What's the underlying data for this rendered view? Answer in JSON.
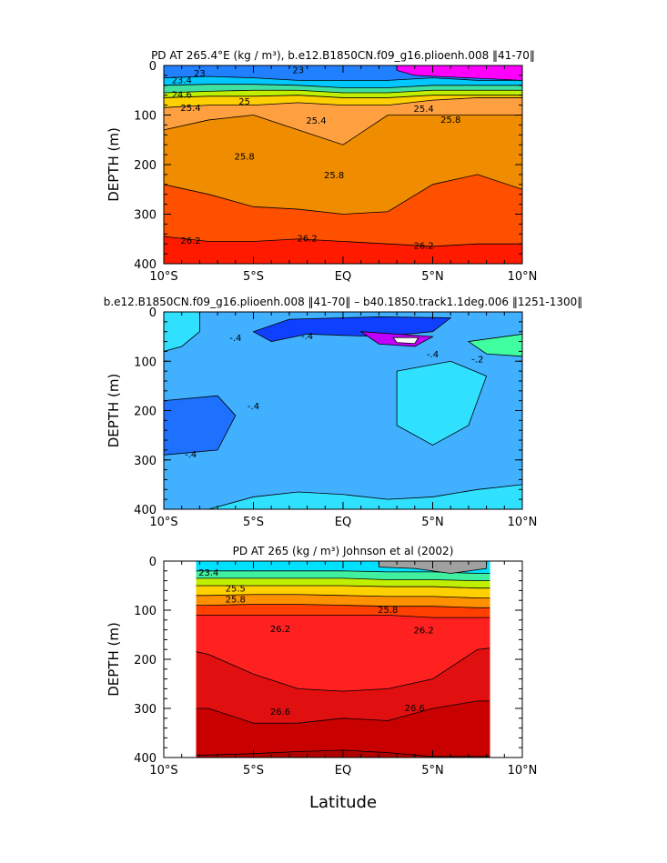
{
  "figure_xlabel": "Latitude",
  "chart_data": [
    {
      "type": "contour",
      "title": "PD AT 265.4°E (kg / m³), b.e12.B1850CN.f09_g16.plioenh.008 ‖41-70‖",
      "ylabel": "DEPTH (m)",
      "xlim": [
        -10,
        10
      ],
      "xticks": [
        {
          "value": -10,
          "label": "10°S"
        },
        {
          "value": -5,
          "label": "5°S"
        },
        {
          "value": 0,
          "label": "EQ"
        },
        {
          "value": 5,
          "label": "5°N"
        },
        {
          "value": 10,
          "label": "10°N"
        }
      ],
      "ylim": [
        400,
        0
      ],
      "yticks": [
        0,
        100,
        200,
        300,
        400
      ],
      "colors": [
        "#2080ff",
        "#00c8ff",
        "#40e0a0",
        "#c0f000",
        "#ffd000",
        "#ffa040",
        "#f08c00",
        "#ff5000",
        "#ff1a00",
        "#ff00ff"
      ],
      "contour_labels": [
        "23",
        "23",
        "23.4",
        "24.6",
        "25",
        "25.4",
        "25.4",
        "25.4",
        "25.8",
        "25.8",
        "25.8",
        "26.2",
        "26.2",
        "26.2"
      ]
    },
    {
      "type": "contour",
      "title": "b.e12.B1850CN.f09_g16.plioenh.008 ‖41-70‖ – b40.1850.track1.1deg.006 ‖1251-1300‖",
      "ylabel": "DEPTH (m)",
      "xlim": [
        -10,
        10
      ],
      "xticks": [
        {
          "value": -10,
          "label": "10°S"
        },
        {
          "value": -5,
          "label": "5°S"
        },
        {
          "value": 0,
          "label": "EQ"
        },
        {
          "value": 5,
          "label": "5°N"
        },
        {
          "value": 10,
          "label": "10°N"
        }
      ],
      "ylim": [
        400,
        0
      ],
      "yticks": [
        0,
        100,
        200,
        300,
        400
      ],
      "colors": [
        "#40b0ff",
        "#30e0ff",
        "#1e70ff",
        "#1040ff",
        "#c000ff",
        "#ffffff",
        "#40ffa0"
      ],
      "contour_labels": [
        "-.4",
        "-.4",
        "-.4",
        "-.4",
        "-.4",
        "-.2"
      ]
    },
    {
      "type": "contour",
      "title": "PD AT 265 (kg / m³) Johnson et al (2002)",
      "ylabel": "DEPTH (m)",
      "xlim": [
        -10,
        10
      ],
      "xticks": [
        {
          "value": -10,
          "label": "10°S"
        },
        {
          "value": -5,
          "label": "5°S"
        },
        {
          "value": 0,
          "label": "EQ"
        },
        {
          "value": 5,
          "label": "5°N"
        },
        {
          "value": 10,
          "label": "10°N"
        }
      ],
      "ylim": [
        400,
        0
      ],
      "yticks": [
        0,
        100,
        200,
        300,
        400
      ],
      "colors": [
        "#00e0ff",
        "#40f0a0",
        "#c0f000",
        "#ffd000",
        "#ff9000",
        "#ff4000",
        "#ff2020",
        "#e01010",
        "#c80000",
        "#b00000",
        "#a0a0a0"
      ],
      "contour_labels": [
        "23.4",
        "25.5",
        "25.8",
        "25.8",
        "26.2",
        "26.2",
        "26.6",
        "26.6"
      ]
    }
  ]
}
